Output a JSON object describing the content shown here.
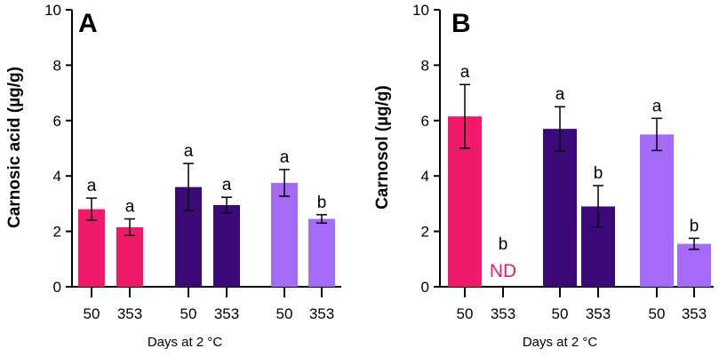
{
  "colors": {
    "pink": "#f0196a",
    "purple": "#3b0a78",
    "lavender": "#a46cf6",
    "nd": "#f0196a",
    "axis": "#000000"
  },
  "chart_data": [
    {
      "type": "bar",
      "panel_label": "A",
      "ylabel": "Carnosic acid (µg/g)",
      "xlabel": "Days at 2 °C",
      "ylim": [
        0,
        10
      ],
      "yticks": [
        "0",
        "2",
        "4",
        "6",
        "8",
        "10"
      ],
      "categories": [
        "50",
        "353",
        "50",
        "353",
        "50",
        "353"
      ],
      "groups": [
        {
          "color": "pink",
          "bars": [
            {
              "day": "50",
              "value": 2.8,
              "err": 0.4,
              "letter": "a"
            },
            {
              "day": "353",
              "value": 2.15,
              "err": 0.3,
              "letter": "a"
            }
          ]
        },
        {
          "color": "purple",
          "bars": [
            {
              "day": "50",
              "value": 3.6,
              "err": 0.85,
              "letter": "a"
            },
            {
              "day": "353",
              "value": 2.95,
              "err": 0.28,
              "letter": "a"
            }
          ]
        },
        {
          "color": "lavender",
          "bars": [
            {
              "day": "50",
              "value": 3.75,
              "err": 0.48,
              "letter": "a"
            },
            {
              "day": "353",
              "value": 2.45,
              "err": 0.15,
              "letter": "b"
            }
          ]
        }
      ]
    },
    {
      "type": "bar",
      "panel_label": "B",
      "ylabel": "Carnosol (µg/g)",
      "xlabel": "Days at 2 °C",
      "ylim": [
        0,
        10
      ],
      "yticks": [
        "0",
        "2",
        "4",
        "6",
        "8",
        "10"
      ],
      "categories": [
        "50",
        "353",
        "50",
        "353",
        "50",
        "353"
      ],
      "groups": [
        {
          "color": "pink",
          "bars": [
            {
              "day": "50",
              "value": 6.15,
              "err": 1.15,
              "letter": "a"
            },
            {
              "day": "353",
              "value": 0,
              "err": 0,
              "letter": "b",
              "note": "ND"
            }
          ]
        },
        {
          "color": "purple",
          "bars": [
            {
              "day": "50",
              "value": 5.7,
              "err": 0.8,
              "letter": "a"
            },
            {
              "day": "353",
              "value": 2.9,
              "err": 0.75,
              "letter": "b"
            }
          ]
        },
        {
          "color": "lavender",
          "bars": [
            {
              "day": "50",
              "value": 5.5,
              "err": 0.58,
              "letter": "a"
            },
            {
              "day": "353",
              "value": 1.55,
              "err": 0.2,
              "letter": "b"
            }
          ]
        }
      ]
    }
  ]
}
